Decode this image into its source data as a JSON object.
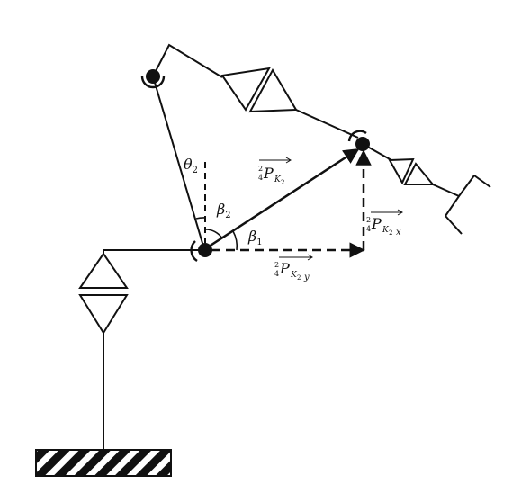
{
  "figure": {
    "labels": {
      "theta": {
        "sym": "θ",
        "sub": "2"
      },
      "beta2": {
        "sym": "β",
        "sub": "2"
      },
      "beta1": {
        "sym": "β",
        "sub": "1"
      },
      "vec_main": {
        "pre_sup": "2",
        "pre_sub": "4",
        "sym": "P",
        "sub": "K",
        "subsub": "2"
      },
      "vec_y": {
        "pre_sup": "2",
        "pre_sub": "4",
        "sym": "P",
        "sub": "K",
        "subsub": "2",
        "subsub2": "y"
      },
      "vec_x": {
        "pre_sup": "2",
        "pre_sub": "4",
        "sym": "P",
        "sub": "K",
        "subsub": "2",
        "subsub2": "x"
      }
    },
    "colors": {
      "ink": "#111111",
      "background": "#ffffff"
    }
  }
}
